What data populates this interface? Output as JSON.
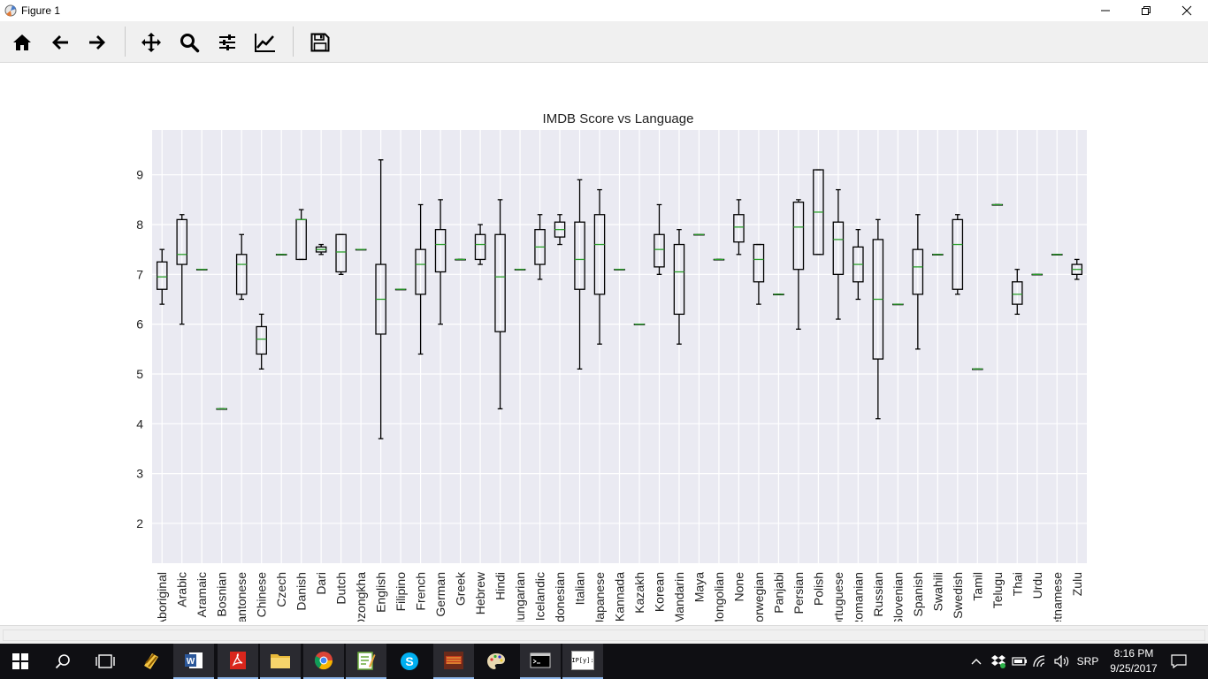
{
  "window": {
    "title": "Figure 1"
  },
  "toolbar": {
    "buttons": [
      {
        "name": "home-button",
        "icon": "home-icon"
      },
      {
        "name": "back-button",
        "icon": "arrow-left-icon"
      },
      {
        "name": "forward-button",
        "icon": "arrow-right-icon"
      },
      {
        "name": "pan-button",
        "icon": "move-icon"
      },
      {
        "name": "zoom-button",
        "icon": "magnifier-icon"
      },
      {
        "name": "subplots-button",
        "icon": "sliders-icon"
      },
      {
        "name": "edit-axes-button",
        "icon": "line-chart-icon"
      },
      {
        "name": "save-button",
        "icon": "floppy-disk-icon"
      }
    ]
  },
  "chart_data": {
    "type": "box",
    "title": "IMDB Score vs Language",
    "xlabel": "",
    "ylabel": "",
    "ylim": [
      1.2,
      9.9
    ],
    "yticks": [
      2,
      3,
      4,
      5,
      6,
      7,
      8,
      9
    ],
    "grid": true,
    "categories": [
      "Aboriginal",
      "Arabic",
      "Aramaic",
      "Bosnian",
      "Cantonese",
      "Chinese",
      "Czech",
      "Danish",
      "Dari",
      "Dutch",
      "Dzongkha",
      "English",
      "Filipino",
      "French",
      "German",
      "Greek",
      "Hebrew",
      "Hindi",
      "Hungarian",
      "Icelandic",
      "Indonesian",
      "Italian",
      "Japanese",
      "Kannada",
      "Kazakh",
      "Korean",
      "Mandarin",
      "Maya",
      "Mongolian",
      "None",
      "Norwegian",
      "Panjabi",
      "Persian",
      "Polish",
      "Portuguese",
      "Romanian",
      "Russian",
      "Slovenian",
      "Spanish",
      "Swahili",
      "Swedish",
      "Tamil",
      "Telugu",
      "Thai",
      "Urdu",
      "Vietnamese",
      "Zulu"
    ],
    "boxes": [
      {
        "whislo": 6.4,
        "q1": 6.7,
        "med": 6.95,
        "q3": 7.25,
        "whishi": 7.5
      },
      {
        "whislo": 6.0,
        "q1": 7.2,
        "med": 7.4,
        "q3": 8.1,
        "whishi": 8.2
      },
      {
        "whislo": 7.1,
        "q1": 7.1,
        "med": 7.1,
        "q3": 7.1,
        "whishi": 7.1
      },
      {
        "whislo": 4.3,
        "q1": 4.3,
        "med": 4.3,
        "q3": 4.3,
        "whishi": 4.3
      },
      {
        "whislo": 6.5,
        "q1": 6.6,
        "med": 7.2,
        "q3": 7.4,
        "whishi": 7.8
      },
      {
        "whislo": 5.1,
        "q1": 5.4,
        "med": 5.7,
        "q3": 5.95,
        "whishi": 6.2
      },
      {
        "whislo": 7.4,
        "q1": 7.4,
        "med": 7.4,
        "q3": 7.4,
        "whishi": 7.4
      },
      {
        "whislo": 7.3,
        "q1": 7.3,
        "med": 8.1,
        "q3": 8.1,
        "whishi": 8.3
      },
      {
        "whislo": 7.4,
        "q1": 7.45,
        "med": 7.5,
        "q3": 7.55,
        "whishi": 7.6
      },
      {
        "whislo": 7.0,
        "q1": 7.05,
        "med": 7.45,
        "q3": 7.8,
        "whishi": 7.8
      },
      {
        "whislo": 7.5,
        "q1": 7.5,
        "med": 7.5,
        "q3": 7.5,
        "whishi": 7.5
      },
      {
        "whislo": 3.7,
        "q1": 5.8,
        "med": 6.5,
        "q3": 7.2,
        "whishi": 9.3
      },
      {
        "whislo": 6.7,
        "q1": 6.7,
        "med": 6.7,
        "q3": 6.7,
        "whishi": 6.7
      },
      {
        "whislo": 5.4,
        "q1": 6.6,
        "med": 7.2,
        "q3": 7.5,
        "whishi": 8.4
      },
      {
        "whislo": 6.0,
        "q1": 7.05,
        "med": 7.6,
        "q3": 7.9,
        "whishi": 8.5
      },
      {
        "whislo": 7.3,
        "q1": 7.3,
        "med": 7.3,
        "q3": 7.3,
        "whishi": 7.3
      },
      {
        "whislo": 7.2,
        "q1": 7.3,
        "med": 7.6,
        "q3": 7.8,
        "whishi": 8.0
      },
      {
        "whislo": 4.3,
        "q1": 5.85,
        "med": 6.95,
        "q3": 7.8,
        "whishi": 8.5
      },
      {
        "whislo": 7.1,
        "q1": 7.1,
        "med": 7.1,
        "q3": 7.1,
        "whishi": 7.1
      },
      {
        "whislo": 6.9,
        "q1": 7.2,
        "med": 7.55,
        "q3": 7.9,
        "whishi": 8.2
      },
      {
        "whislo": 7.6,
        "q1": 7.75,
        "med": 7.9,
        "q3": 8.05,
        "whishi": 8.2
      },
      {
        "whislo": 5.1,
        "q1": 6.7,
        "med": 7.3,
        "q3": 8.05,
        "whishi": 8.9
      },
      {
        "whislo": 5.6,
        "q1": 6.6,
        "med": 7.6,
        "q3": 8.2,
        "whishi": 8.7
      },
      {
        "whislo": 7.1,
        "q1": 7.1,
        "med": 7.1,
        "q3": 7.1,
        "whishi": 7.1
      },
      {
        "whislo": 6.0,
        "q1": 6.0,
        "med": 6.0,
        "q3": 6.0,
        "whishi": 6.0
      },
      {
        "whislo": 7.0,
        "q1": 7.15,
        "med": 7.5,
        "q3": 7.8,
        "whishi": 8.4
      },
      {
        "whislo": 5.6,
        "q1": 6.2,
        "med": 7.05,
        "q3": 7.6,
        "whishi": 7.9
      },
      {
        "whislo": 7.8,
        "q1": 7.8,
        "med": 7.8,
        "q3": 7.8,
        "whishi": 7.8
      },
      {
        "whislo": 7.3,
        "q1": 7.3,
        "med": 7.3,
        "q3": 7.3,
        "whishi": 7.3
      },
      {
        "whislo": 7.4,
        "q1": 7.65,
        "med": 7.95,
        "q3": 8.2,
        "whishi": 8.5
      },
      {
        "whislo": 6.4,
        "q1": 6.85,
        "med": 7.3,
        "q3": 7.6,
        "whishi": 7.6
      },
      {
        "whislo": 6.6,
        "q1": 6.6,
        "med": 6.6,
        "q3": 6.6,
        "whishi": 6.6
      },
      {
        "whislo": 5.9,
        "q1": 7.1,
        "med": 7.95,
        "q3": 8.45,
        "whishi": 8.5
      },
      {
        "whislo": 7.4,
        "q1": 7.4,
        "med": 8.25,
        "q3": 9.1,
        "whishi": 9.1
      },
      {
        "whislo": 6.1,
        "q1": 7.0,
        "med": 7.7,
        "q3": 8.05,
        "whishi": 8.7
      },
      {
        "whislo": 6.5,
        "q1": 6.85,
        "med": 7.2,
        "q3": 7.55,
        "whishi": 7.9
      },
      {
        "whislo": 4.1,
        "q1": 5.3,
        "med": 6.5,
        "q3": 7.7,
        "whishi": 8.1
      },
      {
        "whislo": 6.4,
        "q1": 6.4,
        "med": 6.4,
        "q3": 6.4,
        "whishi": 6.4
      },
      {
        "whislo": 5.5,
        "q1": 6.6,
        "med": 7.15,
        "q3": 7.5,
        "whishi": 8.2
      },
      {
        "whislo": 7.4,
        "q1": 7.4,
        "med": 7.4,
        "q3": 7.4,
        "whishi": 7.4
      },
      {
        "whislo": 6.6,
        "q1": 6.7,
        "med": 7.6,
        "q3": 8.1,
        "whishi": 8.2
      },
      {
        "whislo": 5.1,
        "q1": 5.1,
        "med": 5.1,
        "q3": 5.1,
        "whishi": 5.1
      },
      {
        "whislo": 8.4,
        "q1": 8.4,
        "med": 8.4,
        "q3": 8.4,
        "whishi": 8.4
      },
      {
        "whislo": 6.2,
        "q1": 6.4,
        "med": 6.6,
        "q3": 6.85,
        "whishi": 7.1
      },
      {
        "whislo": 7.0,
        "q1": 7.0,
        "med": 7.0,
        "q3": 7.0,
        "whishi": 7.0
      },
      {
        "whislo": 7.4,
        "q1": 7.4,
        "med": 7.4,
        "q3": 7.4,
        "whishi": 7.4
      },
      {
        "whislo": 6.9,
        "q1": 7.0,
        "med": 7.1,
        "q3": 7.2,
        "whishi": 7.3
      }
    ],
    "colors": {
      "box": "#000000",
      "median": "#2ca02c",
      "axes_bg": "#eaeaf2",
      "grid": "#ffffff"
    }
  },
  "taskbar": {
    "items": [
      {
        "name": "start-button",
        "icon": "windows-logo-icon"
      },
      {
        "name": "search-button",
        "icon": "search-icon"
      },
      {
        "name": "task-view-button",
        "icon": "task-view-icon"
      },
      {
        "name": "taskbar-app-winrar",
        "icon": "archive-icon"
      },
      {
        "name": "taskbar-app-word",
        "icon": "word-icon"
      },
      {
        "name": "taskbar-app-pdf",
        "icon": "pdf-icon"
      },
      {
        "name": "taskbar-app-explorer",
        "icon": "folder-icon"
      },
      {
        "name": "taskbar-app-chrome",
        "icon": "chrome-icon"
      },
      {
        "name": "taskbar-app-notepadpp",
        "icon": "notepad-icon"
      },
      {
        "name": "taskbar-app-skype",
        "icon": "skype-icon"
      },
      {
        "name": "taskbar-app-game",
        "icon": "game-icon"
      },
      {
        "name": "taskbar-app-paint",
        "icon": "paint-palette-icon"
      },
      {
        "name": "taskbar-app-cmd",
        "icon": "terminal-icon"
      },
      {
        "name": "taskbar-app-ipython",
        "icon": "ipython-icon"
      }
    ],
    "ipython_label": "IP[y]:",
    "language": "SRP",
    "time": "8:16 PM",
    "date": "9/25/2017"
  }
}
